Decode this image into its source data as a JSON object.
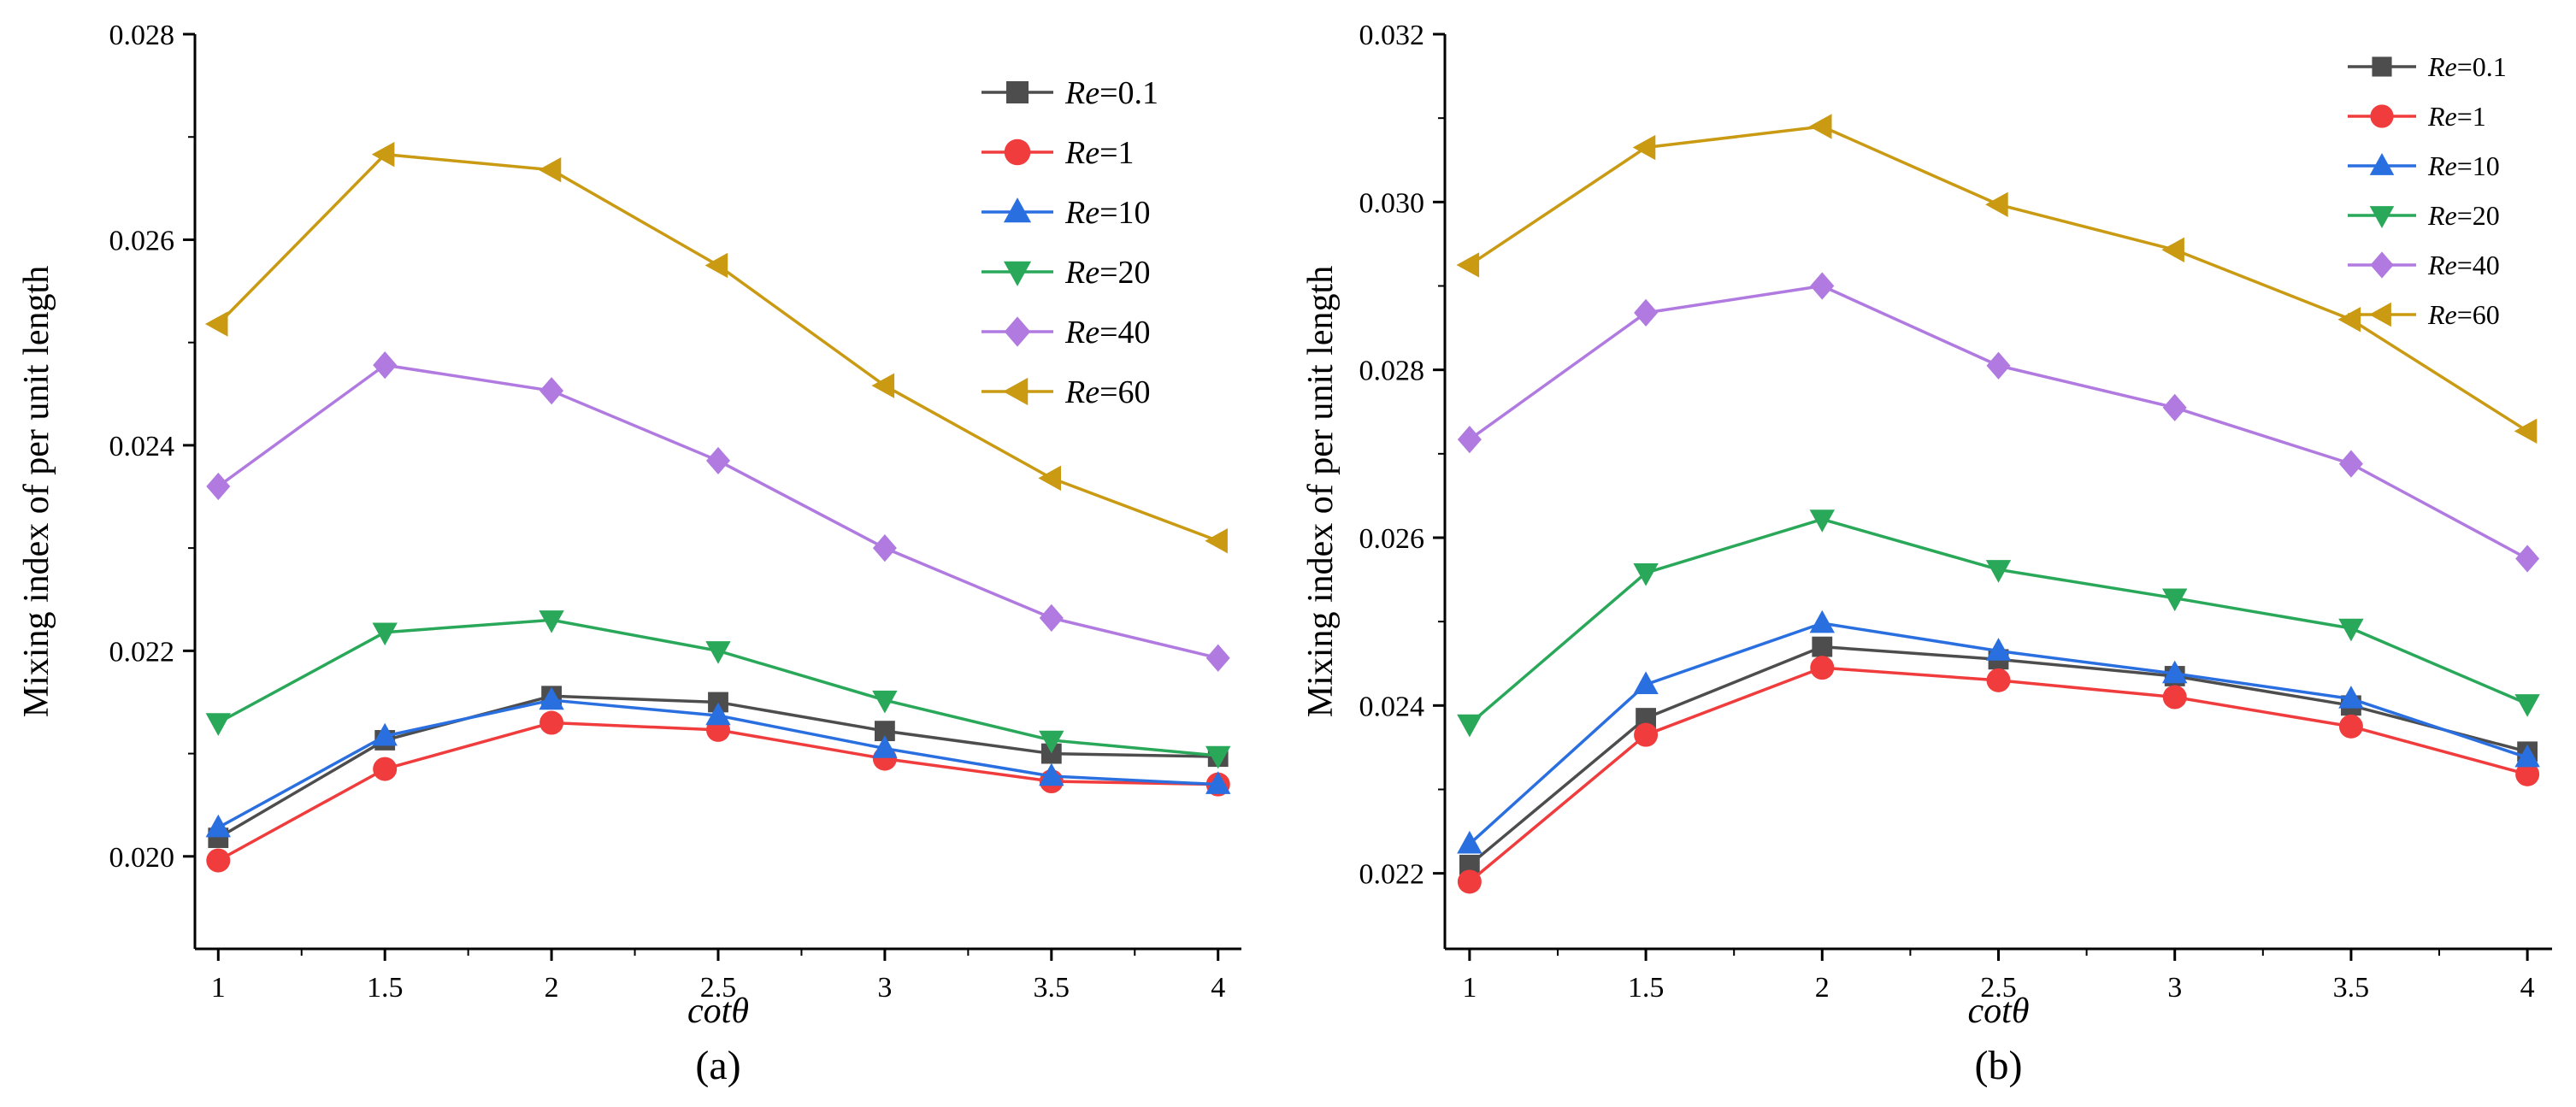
{
  "chart_data": [
    {
      "type": "line",
      "panel_label": "(a)",
      "xlabel": "cotθ",
      "ylabel": "Mixing index of per unit length",
      "x": [
        1,
        1.5,
        2,
        2.5,
        3,
        3.5,
        4
      ],
      "x_tick_labels": [
        "1",
        "1.5",
        "2",
        "2.5",
        "3",
        "3.5",
        "4"
      ],
      "xlim": [
        0.93,
        4.07
      ],
      "ylim": [
        0.0191,
        0.028
      ],
      "y_ticks": [
        0.02,
        0.022,
        0.024,
        0.026,
        0.028
      ],
      "y_tick_labels": [
        "0.020",
        "0.022",
        "0.024",
        "0.026",
        "0.028"
      ],
      "legend_position": "top-right",
      "series": [
        {
          "name": "Re=0.1",
          "name_prefix": "Re",
          "name_suffix": "=0.1",
          "color": "#4d4d4d",
          "marker": "square",
          "values": [
            0.02018,
            0.02113,
            0.02156,
            0.0215,
            0.02122,
            0.021,
            0.02097
          ]
        },
        {
          "name": "Re=1",
          "name_prefix": "Re",
          "name_suffix": "=1",
          "color": "#f03c3c",
          "marker": "circle",
          "values": [
            0.01996,
            0.02085,
            0.0213,
            0.02123,
            0.02095,
            0.02073,
            0.0207
          ]
        },
        {
          "name": "Re=10",
          "name_prefix": "Re",
          "name_suffix": "=10",
          "color": "#2a6fe0",
          "marker": "triangle-up",
          "values": [
            0.02028,
            0.02117,
            0.02152,
            0.02137,
            0.02105,
            0.02078,
            0.0207
          ]
        },
        {
          "name": "Re=20",
          "name_prefix": "Re",
          "name_suffix": "=20",
          "color": "#2aa85a",
          "marker": "triangle-down",
          "values": [
            0.0213,
            0.02218,
            0.0223,
            0.022,
            0.02152,
            0.02113,
            0.02098
          ]
        },
        {
          "name": "Re=40",
          "name_prefix": "Re",
          "name_suffix": "=40",
          "color": "#b07ae0",
          "marker": "diamond",
          "values": [
            0.0236,
            0.02478,
            0.02453,
            0.02385,
            0.023,
            0.02232,
            0.02193
          ]
        },
        {
          "name": "Re=60",
          "name_prefix": "Re",
          "name_suffix": "=60",
          "color": "#c99a12",
          "marker": "triangle-left",
          "values": [
            0.02518,
            0.02683,
            0.02668,
            0.02575,
            0.02458,
            0.02368,
            0.02307
          ]
        }
      ]
    },
    {
      "type": "line",
      "panel_label": "(b)",
      "xlabel": "cotθ",
      "ylabel": "Mixing index of per unit length",
      "x": [
        1,
        1.5,
        2,
        2.5,
        3,
        3.5,
        4
      ],
      "x_tick_labels": [
        "1",
        "1.5",
        "2",
        "2.5",
        "3",
        "3.5",
        "4"
      ],
      "xlim": [
        0.93,
        4.07
      ],
      "ylim": [
        0.0211,
        0.032
      ],
      "y_ticks": [
        0.022,
        0.024,
        0.026,
        0.028,
        0.03,
        0.032
      ],
      "y_tick_labels": [
        "0.022",
        "0.024",
        "0.026",
        "0.028",
        "0.030",
        "0.032"
      ],
      "legend_position": "top-right",
      "series": [
        {
          "name": "Re=0.1",
          "name_prefix": "Re",
          "name_suffix": "=0.1",
          "color": "#4d4d4d",
          "marker": "square",
          "values": [
            0.0221,
            0.02385,
            0.0247,
            0.02455,
            0.02435,
            0.024,
            0.02345
          ]
        },
        {
          "name": "Re=1",
          "name_prefix": "Re",
          "name_suffix": "=1",
          "color": "#f03c3c",
          "marker": "circle",
          "values": [
            0.0219,
            0.02365,
            0.02445,
            0.0243,
            0.0241,
            0.02375,
            0.02318
          ]
        },
        {
          "name": "Re=10",
          "name_prefix": "Re",
          "name_suffix": "=10",
          "color": "#2a6fe0",
          "marker": "triangle-up",
          "values": [
            0.02235,
            0.02425,
            0.02498,
            0.02465,
            0.02438,
            0.02408,
            0.02338
          ]
        },
        {
          "name": "Re=20",
          "name_prefix": "Re",
          "name_suffix": "=20",
          "color": "#2aa85a",
          "marker": "triangle-down",
          "values": [
            0.02378,
            0.02558,
            0.02622,
            0.02562,
            0.02528,
            0.02492,
            0.02402
          ]
        },
        {
          "name": "Re=40",
          "name_prefix": "Re",
          "name_suffix": "=40",
          "color": "#b07ae0",
          "marker": "diamond",
          "values": [
            0.02717,
            0.02868,
            0.029,
            0.02805,
            0.02755,
            0.02688,
            0.02575
          ]
        },
        {
          "name": "Re=60",
          "name_prefix": "Re",
          "name_suffix": "=60",
          "color": "#c99a12",
          "marker": "triangle-left",
          "values": [
            0.02925,
            0.03065,
            0.0309,
            0.02997,
            0.02943,
            0.0286,
            0.02727
          ]
        }
      ]
    }
  ]
}
